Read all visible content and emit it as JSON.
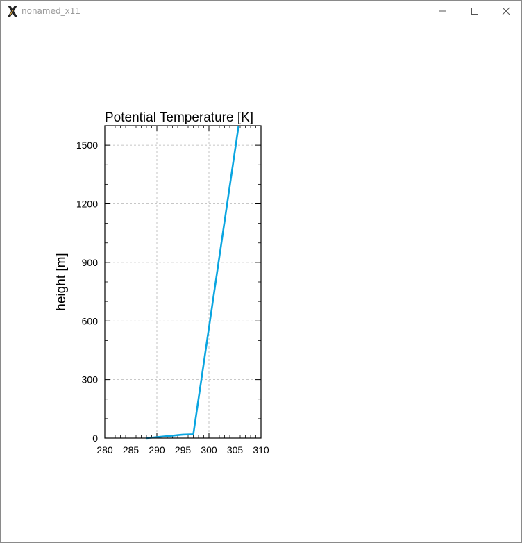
{
  "window": {
    "title": "nonamed_x11",
    "icon": "x11-icon",
    "controls": [
      "minimize-icon",
      "maximize-icon",
      "close-icon"
    ]
  },
  "chart_data": {
    "type": "line",
    "title": "Potential Temperature [K]",
    "xlabel": "",
    "ylabel": "height [m]",
    "xlim": [
      280,
      310
    ],
    "ylim": [
      0,
      1600
    ],
    "xticks": [
      280,
      285,
      290,
      295,
      300,
      305,
      310
    ],
    "yticks": [
      0,
      300,
      600,
      900,
      1200,
      1500
    ],
    "grid": true,
    "line_color": "#0aa5e0",
    "series": [
      {
        "x": [
          288.0,
          290.0,
          295.0,
          297.0,
          305.7
        ],
        "y": [
          0,
          5,
          18,
          20,
          1600
        ]
      }
    ]
  }
}
